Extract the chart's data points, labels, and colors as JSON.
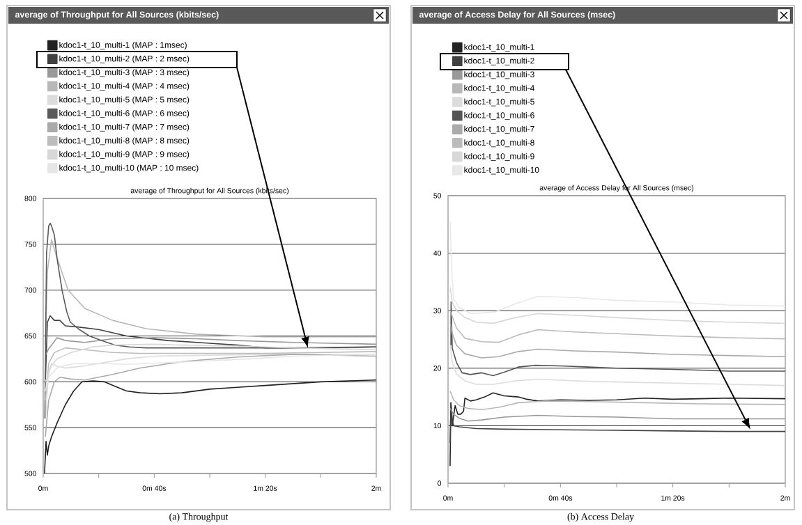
{
  "chart_data": [
    {
      "type": "line",
      "title": "average of Throughput for All Sources (kbits/sec)",
      "subtitle": "average of Throughput for All Sources (kbits/sec)",
      "annotations": [
        "(a) Throughput"
      ],
      "xlim": [
        0,
        2
      ],
      "xticks": [
        {
          "value": 0,
          "label": "0m"
        },
        {
          "value": 0.333,
          "label": null
        },
        {
          "value": 0.667,
          "label": "0m 40s"
        },
        {
          "value": 1,
          "label": null
        },
        {
          "value": 1.333,
          "label": "1m 20s"
        },
        {
          "value": 1.667,
          "label": null
        },
        {
          "value": 2,
          "label": "2m"
        }
      ],
      "ylim": [
        500,
        800
      ],
      "yticks": [
        500,
        550,
        600,
        650,
        700,
        750,
        800
      ],
      "grid": "y",
      "legend": "top",
      "marker": "none",
      "line_style": "solid",
      "series": [
        {
          "name": "kdoc1-t_10_multi-1 (MAP : 1msec)",
          "color": "#222222",
          "x": [
            0.008,
            0.017,
            0.025,
            0.033,
            0.05,
            0.083,
            0.133,
            0.183,
            0.233,
            0.3,
            0.367,
            0.433,
            0.5,
            0.583,
            0.7,
            0.833,
            1,
            1.167,
            1.333,
            1.5,
            1.667,
            1.833,
            2
          ],
          "values": [
            500,
            535,
            520,
            530,
            540,
            555,
            575,
            590,
            600,
            601,
            600,
            595,
            590,
            588,
            587,
            588,
            592,
            594,
            596,
            598,
            600,
            601,
            602
          ]
        },
        {
          "name": "kdoc1-t_10_multi-2 (MAP : 2 msec)",
          "color": "#404040",
          "x": [
            0.013,
            0.025,
            0.042,
            0.067,
            0.1,
            0.133,
            0.2,
            0.333,
            0.5,
            0.75,
            1,
            1.167,
            1.333,
            1.667,
            2
          ],
          "values": [
            600,
            665,
            672,
            667,
            667,
            661,
            660,
            657,
            650,
            645,
            642,
            640,
            637,
            637,
            638
          ]
        },
        {
          "name": "kdoc1-t_10_multi-3 (MAP : 3 msec)",
          "color": "#999999",
          "x": [
            0.017,
            0.033,
            0.05,
            0.083,
            0.133,
            0.25,
            0.417,
            0.667,
            0.917,
            1.167,
            1.5,
            2
          ],
          "values": [
            630,
            636,
            640,
            648,
            645,
            643,
            647,
            648,
            647,
            645,
            643,
            641
          ]
        },
        {
          "name": "kdoc1-t_10_multi-4 (MAP : 4 msec)",
          "color": "#b8b8b8",
          "x": [
            0.013,
            0.025,
            0.05,
            0.083,
            0.15,
            0.25,
            0.417,
            0.617,
            0.917,
            1.333,
            1.667,
            2
          ],
          "values": [
            640,
            720,
            755,
            735,
            700,
            680,
            667,
            658,
            652,
            649,
            649,
            649
          ]
        },
        {
          "name": "kdoc1-t_10_multi-5 (MAP : 5 msec)",
          "color": "#dcdcdc",
          "x": [
            0.013,
            0.033,
            0.05,
            0.083,
            0.133,
            0.233,
            0.333,
            0.5,
            0.667,
            1,
            1.333,
            1.667,
            2
          ],
          "values": [
            560,
            610,
            620,
            617,
            615,
            617,
            620,
            625,
            628,
            629,
            630,
            630,
            630
          ]
        },
        {
          "name": "kdoc1-t_10_multi-6 (MAP : 6 msec)",
          "color": "#5a5a5a",
          "x": [
            0.01,
            0.02,
            0.033,
            0.042,
            0.05,
            0.067,
            0.083,
            0.113,
            0.142,
            0.163,
            0.217,
            0.277,
            0.35,
            0.433,
            0.517,
            0.617,
            0.833,
            1.167,
            1.5,
            2
          ],
          "values": [
            560,
            740,
            770,
            773,
            770,
            760,
            735,
            700,
            676,
            665,
            657,
            650,
            645,
            640,
            638,
            637,
            637,
            637,
            637,
            638
          ]
        },
        {
          "name": "kdoc1-t_10_multi-7 (MAP : 7 msec)",
          "color": "#aaaaaa",
          "x": [
            0.013,
            0.033,
            0.067,
            0.1,
            0.167,
            0.25,
            0.417,
            0.583,
            0.833,
            1.167,
            1.5,
            2
          ],
          "values": [
            540,
            580,
            600,
            605,
            603,
            602,
            608,
            615,
            622,
            627,
            630,
            628
          ]
        },
        {
          "name": "kdoc1-t_10_multi-8 (MAP : 8 msec)",
          "color": "#bdbdbd",
          "x": [
            0.013,
            0.033,
            0.067,
            0.133,
            0.25,
            0.417,
            0.583,
            0.833,
            1.333,
            1.667,
            2
          ],
          "values": [
            580,
            620,
            632,
            637,
            635,
            632,
            631,
            631,
            631,
            632,
            633
          ]
        },
        {
          "name": "kdoc1-t_10_multi-9 (MAP : 9 msec)",
          "color": "#d8d8d8",
          "x": [
            0.013,
            0.05,
            0.083,
            0.167,
            0.3,
            0.417,
            0.667,
            0.833,
            1.167,
            1.5,
            2
          ],
          "values": [
            600,
            618,
            625,
            632,
            638,
            640,
            641,
            640,
            639,
            637,
            635
          ]
        },
        {
          "name": "kdoc1-t_10_multi-10 (MAP : 10 msec)",
          "color": "#e6e6e6",
          "x": [
            0.013,
            0.033,
            0.083,
            0.133,
            0.2,
            0.333,
            0.5,
            0.75,
            1,
            1.25,
            1.5,
            1.75,
            2
          ],
          "values": [
            590,
            605,
            615,
            618,
            620,
            620,
            619,
            621,
            623,
            625,
            628,
            629,
            630
          ]
        }
      ]
    },
    {
      "type": "line",
      "title": "average of Access Delay for All Sources (msec)",
      "subtitle": "average of Access Delay for All Sources (msec)",
      "annotations": [
        "(b) Access Delay"
      ],
      "xlim": [
        0,
        2
      ],
      "xticks": [
        {
          "value": 0,
          "label": "0m"
        },
        {
          "value": 0.333,
          "label": null
        },
        {
          "value": 0.667,
          "label": "0m 40s"
        },
        {
          "value": 1,
          "label": null
        },
        {
          "value": 1.333,
          "label": "1m 20s"
        },
        {
          "value": 1.667,
          "label": null
        },
        {
          "value": 2,
          "label": "2m"
        }
      ],
      "ylim": [
        0,
        50
      ],
      "yticks": [
        0,
        10,
        20,
        30,
        40,
        50
      ],
      "grid": "y",
      "legend": "top",
      "marker": "none",
      "line_style": "solid",
      "series": [
        {
          "name": "kdoc1-t_10_multi-1",
          "color": "#222222",
          "x": [
            0.012,
            0.017,
            0.025,
            0.042,
            0.058,
            0.075,
            0.092,
            0.1,
            0.133,
            0.167,
            0.217,
            0.267,
            0.333,
            0.417,
            0.467,
            0.533,
            0.667,
            0.833,
            1,
            1.167,
            1.333,
            1.667,
            2
          ],
          "values": [
            3,
            14,
            10,
            13.5,
            12,
            12,
            12.5,
            14.8,
            14.3,
            14.5,
            15,
            15.7,
            15.2,
            15,
            14.6,
            14.3,
            14.5,
            14.4,
            14.5,
            14.8,
            14.6,
            14.8,
            14.7
          ]
        },
        {
          "name": "kdoc1-t_10_multi-2",
          "color": "#404040",
          "x": [
            0.012,
            0.017,
            0.025,
            0.033,
            0.067,
            0.167,
            0.333,
            0.667,
            1,
            1.333,
            1.667,
            2
          ],
          "values": [
            7,
            14,
            11,
            10,
            9.8,
            9.5,
            9.4,
            9.3,
            9.2,
            9.1,
            9,
            9
          ]
        },
        {
          "name": "kdoc1-t_10_multi-3",
          "color": "#999999",
          "x": [
            0.013,
            0.033,
            0.067,
            0.117,
            0.2,
            0.333,
            0.533,
            0.75,
            1,
            1.333,
            1.667,
            2
          ],
          "values": [
            13,
            12,
            11.3,
            10.8,
            11,
            11.5,
            11.8,
            11.6,
            11.5,
            11.2,
            11.2,
            11.2
          ]
        },
        {
          "name": "kdoc1-t_10_multi-4",
          "color": "#b8b8b8",
          "x": [
            0.013,
            0.033,
            0.067,
            0.117,
            0.2,
            0.3,
            0.417,
            0.583,
            0.833,
            1.167,
            1.5,
            2
          ],
          "values": [
            16,
            14.5,
            13.5,
            13,
            12.8,
            13.2,
            14,
            14.3,
            14.2,
            14,
            13.8,
            13.7
          ]
        },
        {
          "name": "kdoc1-t_10_multi-5",
          "color": "#dcdcdc",
          "x": [
            0.013,
            0.025,
            0.05,
            0.1,
            0.167,
            0.267,
            0.4,
            0.533,
            0.75,
            1,
            1.333,
            1.667,
            2
          ],
          "values": [
            24,
            21,
            19,
            17.8,
            17.2,
            17.2,
            17.8,
            18.1,
            17.8,
            17.6,
            17.4,
            17.2,
            17
          ]
        },
        {
          "name": "kdoc1-t_10_multi-6",
          "color": "#555555",
          "x": [
            0.017,
            0.018,
            0.025,
            0.05,
            0.083,
            0.133,
            0.2,
            0.267,
            0.333,
            0.417,
            0.517,
            0.667,
            0.833,
            1,
            1.333,
            1.667,
            2
          ],
          "values": [
            24,
            31.5,
            23.5,
            21,
            19.2,
            18.9,
            19.2,
            18.7,
            19.3,
            20.2,
            20.5,
            20.4,
            20.2,
            20,
            19.8,
            19.5,
            19.5
          ]
        },
        {
          "name": "kdoc1-t_10_multi-7",
          "color": "#aaaaaa",
          "x": [
            0.013,
            0.025,
            0.05,
            0.1,
            0.2,
            0.3,
            0.417,
            0.533,
            0.75,
            1,
            1.333,
            1.667,
            2
          ],
          "values": [
            28,
            26,
            24,
            22.5,
            21.8,
            22,
            22.9,
            23.3,
            23,
            22.8,
            22.4,
            22.2,
            22
          ]
        },
        {
          "name": "kdoc1-t_10_multi-8",
          "color": "#bbbbbb",
          "x": [
            0.013,
            0.025,
            0.05,
            0.1,
            0.2,
            0.3,
            0.417,
            0.533,
            0.75,
            1,
            1.333,
            1.667,
            2
          ],
          "values": [
            30,
            29,
            27,
            25.2,
            24.6,
            24.5,
            25.8,
            26.7,
            26.3,
            26,
            25.6,
            25.3,
            25.1
          ]
        },
        {
          "name": "kdoc1-t_10_multi-9",
          "color": "#d8d8d8",
          "x": [
            0.013,
            0.025,
            0.05,
            0.1,
            0.167,
            0.267,
            0.4,
            0.533,
            0.75,
            1,
            1.333,
            1.667,
            2
          ],
          "values": [
            34,
            31.5,
            30,
            28.8,
            28,
            27.8,
            28.8,
            29.5,
            29.2,
            28.8,
            28.3,
            28,
            27.8
          ]
        },
        {
          "name": "kdoc1-t_10_multi-10",
          "color": "#e8e8e8",
          "x": [
            0.013,
            0.02,
            0.033,
            0.067,
            0.133,
            0.2,
            0.283,
            0.4,
            0.533,
            0.75,
            1,
            1.333,
            1.667,
            2
          ],
          "values": [
            45.5,
            38,
            32,
            30.5,
            29.5,
            29.6,
            29.8,
            31.2,
            32.5,
            32.3,
            31.8,
            31.5,
            31,
            30.8
          ]
        }
      ]
    }
  ]
}
